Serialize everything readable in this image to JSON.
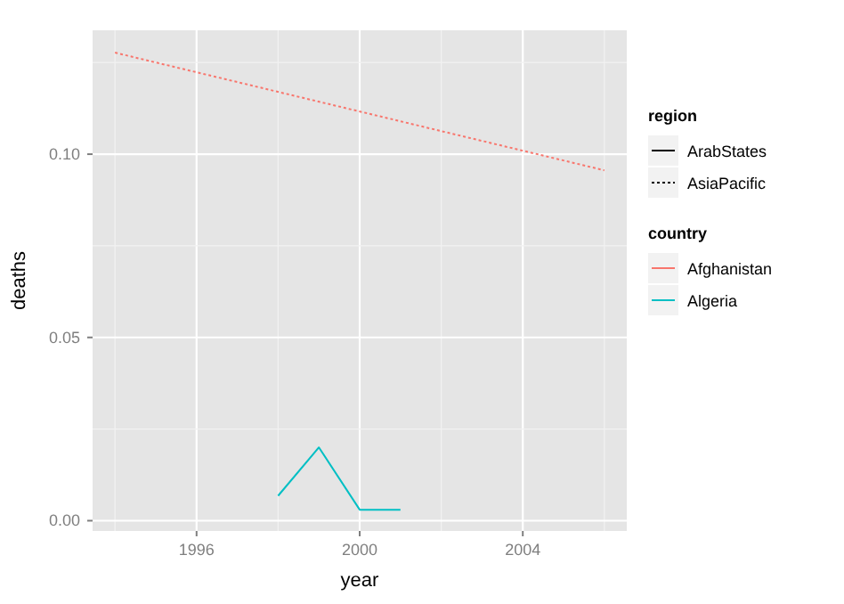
{
  "chart_data": {
    "type": "line",
    "xlabel": "year",
    "ylabel": "deaths",
    "legend_title": "country",
    "legend": "right",
    "grid": true,
    "xlim": [
      1993.45,
      2006.55
    ],
    "xticks": [
      1996,
      2000,
      2004
    ],
    "ylim": [
      -0.0028,
      0.1338
    ],
    "yticks": [
      {
        "value": 0,
        "label": "0.00"
      },
      {
        "value": 0.05,
        "label": "0.05"
      },
      {
        "value": 0.1,
        "label": "0.10"
      }
    ],
    "annotations": [
      "region",
      "ArabStates",
      "AsiaPacific"
    ],
    "series": [
      {
        "name": "Afghanistan",
        "color": "#f8766d",
        "line_style": "dotted",
        "x": [
          1994,
          2006
        ],
        "values": [
          0.1277,
          0.0956
        ]
      },
      {
        "name": "Algeria",
        "color": "#00bfc4",
        "line_style": "solid",
        "x": [
          1998,
          1999,
          2000,
          2001
        ],
        "values": [
          0.0068,
          0.02,
          0.003,
          0.003
        ]
      }
    ]
  }
}
